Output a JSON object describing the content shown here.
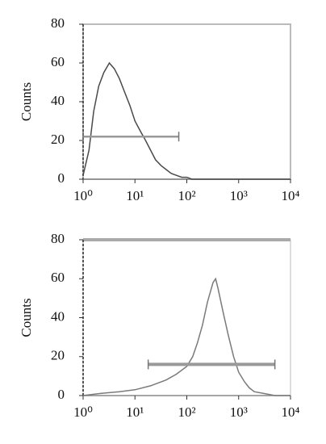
{
  "chart_data": [
    {
      "type": "line",
      "y_label": "Counts",
      "log_x": true,
      "color": "#4a4a4a",
      "x": [
        1,
        1.3,
        1.6,
        2,
        2.5,
        3.2,
        4,
        5,
        6.3,
        8,
        10,
        12.6,
        16,
        20,
        25,
        32,
        40,
        50,
        63,
        80,
        100,
        126,
        160,
        250,
        1000,
        10000
      ],
      "values": [
        2,
        15,
        35,
        48,
        55,
        60,
        57,
        52,
        45,
        38,
        30,
        25,
        20,
        15,
        10,
        7,
        5,
        3,
        2,
        1,
        1,
        0,
        0,
        0,
        0,
        0
      ],
      "gate": {
        "start": 1,
        "end": 70,
        "level": 22
      },
      "xlim": [
        1,
        10000
      ],
      "xticks": [
        {
          "value": 1,
          "label": "10⁰"
        },
        {
          "value": 10,
          "label": "10¹"
        },
        {
          "value": 100,
          "label": "10²"
        },
        {
          "value": 1000,
          "label": "10³"
        },
        {
          "value": 10000,
          "label": "10⁴"
        }
      ],
      "ylim": [
        0,
        80
      ],
      "yticks": [
        0,
        20,
        40,
        60,
        80
      ]
    },
    {
      "type": "line",
      "y_label": "Counts",
      "log_x": true,
      "color": "#7a7a7a",
      "x": [
        1,
        2,
        5,
        10,
        20,
        40,
        63,
        100,
        130,
        160,
        200,
        250,
        320,
        360,
        400,
        500,
        630,
        800,
        1000,
        1300,
        1600,
        2000,
        3200,
        5000,
        10000
      ],
      "values": [
        0,
        1,
        2,
        3,
        5,
        8,
        11,
        15,
        20,
        27,
        36,
        48,
        58,
        60,
        55,
        43,
        31,
        20,
        12,
        7,
        4,
        2,
        1,
        0,
        0
      ],
      "gate": {
        "start": 18,
        "end": 5000,
        "level": 16
      },
      "xlim": [
        1,
        10000
      ],
      "xticks": [
        {
          "value": 1,
          "label": "10⁰"
        },
        {
          "value": 10,
          "label": "10¹"
        },
        {
          "value": 100,
          "label": "10²"
        },
        {
          "value": 1000,
          "label": "10³"
        },
        {
          "value": 10000,
          "label": "10⁴"
        }
      ],
      "ylim": [
        0,
        80
      ],
      "yticks": [
        0,
        20,
        40,
        60,
        80
      ]
    }
  ]
}
